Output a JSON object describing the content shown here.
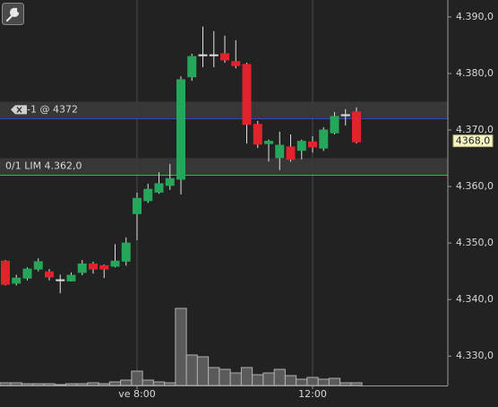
{
  "chart_data": {
    "type": "candlestick",
    "categories": [
      null,
      null,
      null,
      null,
      null,
      null,
      null,
      null,
      null,
      null,
      null,
      null,
      "ve 8:00",
      null,
      null,
      null,
      null,
      null,
      null,
      null,
      null,
      null,
      null,
      null,
      null,
      null,
      null,
      null,
      "12:00",
      null,
      null,
      null,
      null
    ],
    "series": [
      {
        "up_color": "#26a65b",
        "down_color": "#e3232c",
        "open": [
          4346.8,
          4342.9,
          4343.8,
          4345.4,
          4344.9,
          4343.5,
          4343.3,
          4344.8,
          4346.3,
          4346.0,
          4345.9,
          4346.8,
          4355.2,
          4357.5,
          4359.0,
          4360.2,
          4361.3,
          4379.4,
          4383.3,
          4383.3,
          4383.5,
          4382.1,
          4381.6,
          4371.0,
          4367.6,
          4365.1,
          4367.0,
          4366.4,
          4367.9,
          4366.8,
          4369.5,
          4372.7,
          4373.2
        ],
        "high": [
          4347.0,
          4344.4,
          4345.7,
          4347.3,
          4345.4,
          4344.4,
          4344.8,
          4347.0,
          4346.7,
          4346.2,
          4349.8,
          4351.0,
          4358.9,
          4360.5,
          4362.5,
          4364.0,
          4379.5,
          4383.5,
          4388.3,
          4387.5,
          4386.7,
          4385.9,
          4381.9,
          4371.6,
          4368.3,
          4369.7,
          4369.2,
          4368.3,
          4368.9,
          4370.5,
          4373.2,
          4373.7,
          4374.0
        ],
        "low": [
          4342.5,
          4342.5,
          4343.4,
          4345.0,
          4343.4,
          4341.1,
          4343.2,
          4344.3,
          4344.6,
          4343.8,
          4345.7,
          4346.0,
          4350.5,
          4357.1,
          4358.7,
          4359.4,
          4358.6,
          4378.7,
          4381.1,
          4381.1,
          4381.9,
          4380.9,
          4367.6,
          4366.8,
          4364.4,
          4362.9,
          4364.4,
          4364.8,
          4366.0,
          4366.3,
          4369.2,
          4370.8,
          4367.6
        ],
        "close": [
          4342.7,
          4343.8,
          4345.4,
          4346.7,
          4344.0,
          4343.5,
          4344.3,
          4346.3,
          4345.4,
          4345.4,
          4346.8,
          4350.0,
          4357.9,
          4359.5,
          4360.5,
          4361.4,
          4378.9,
          4383.0,
          4383.3,
          4383.3,
          4382.4,
          4381.4,
          4371.0,
          4367.5,
          4368.0,
          4367.3,
          4364.8,
          4368.0,
          4367.0,
          4370.0,
          4372.4,
          4372.7,
          4367.9
        ],
        "volume": [
          3,
          3,
          2,
          2,
          2,
          1,
          2,
          2,
          3,
          2,
          4,
          6,
          16,
          6,
          4,
          3,
          86,
          34,
          32,
          20,
          18,
          14,
          20,
          12,
          14,
          18,
          11,
          7,
          9,
          7,
          8,
          3,
          3
        ]
      }
    ],
    "ylim": [
      4324.8,
      4393.0
    ],
    "yticks": [
      {
        "value": 4390,
        "label": "4.390,0"
      },
      {
        "value": 4380,
        "label": "4.380,0"
      },
      {
        "value": 4370,
        "label": "4.370,0"
      },
      {
        "value": 4360,
        "label": "4.360,0"
      },
      {
        "value": 4350,
        "label": "4.350,0"
      },
      {
        "value": 4340,
        "label": "4.340,0"
      },
      {
        "value": 4330,
        "label": "4.330,0"
      }
    ],
    "grid": "vertical",
    "orders": [
      {
        "label": "-1 @ 4372",
        "value": 4372,
        "color": "#2a4fb0"
      },
      {
        "label": "0/1 LIM 4.362,0",
        "value": 4362,
        "color": "#2fbf3a"
      }
    ],
    "last_price": {
      "value": 4368.0,
      "label": "4368,0"
    }
  }
}
